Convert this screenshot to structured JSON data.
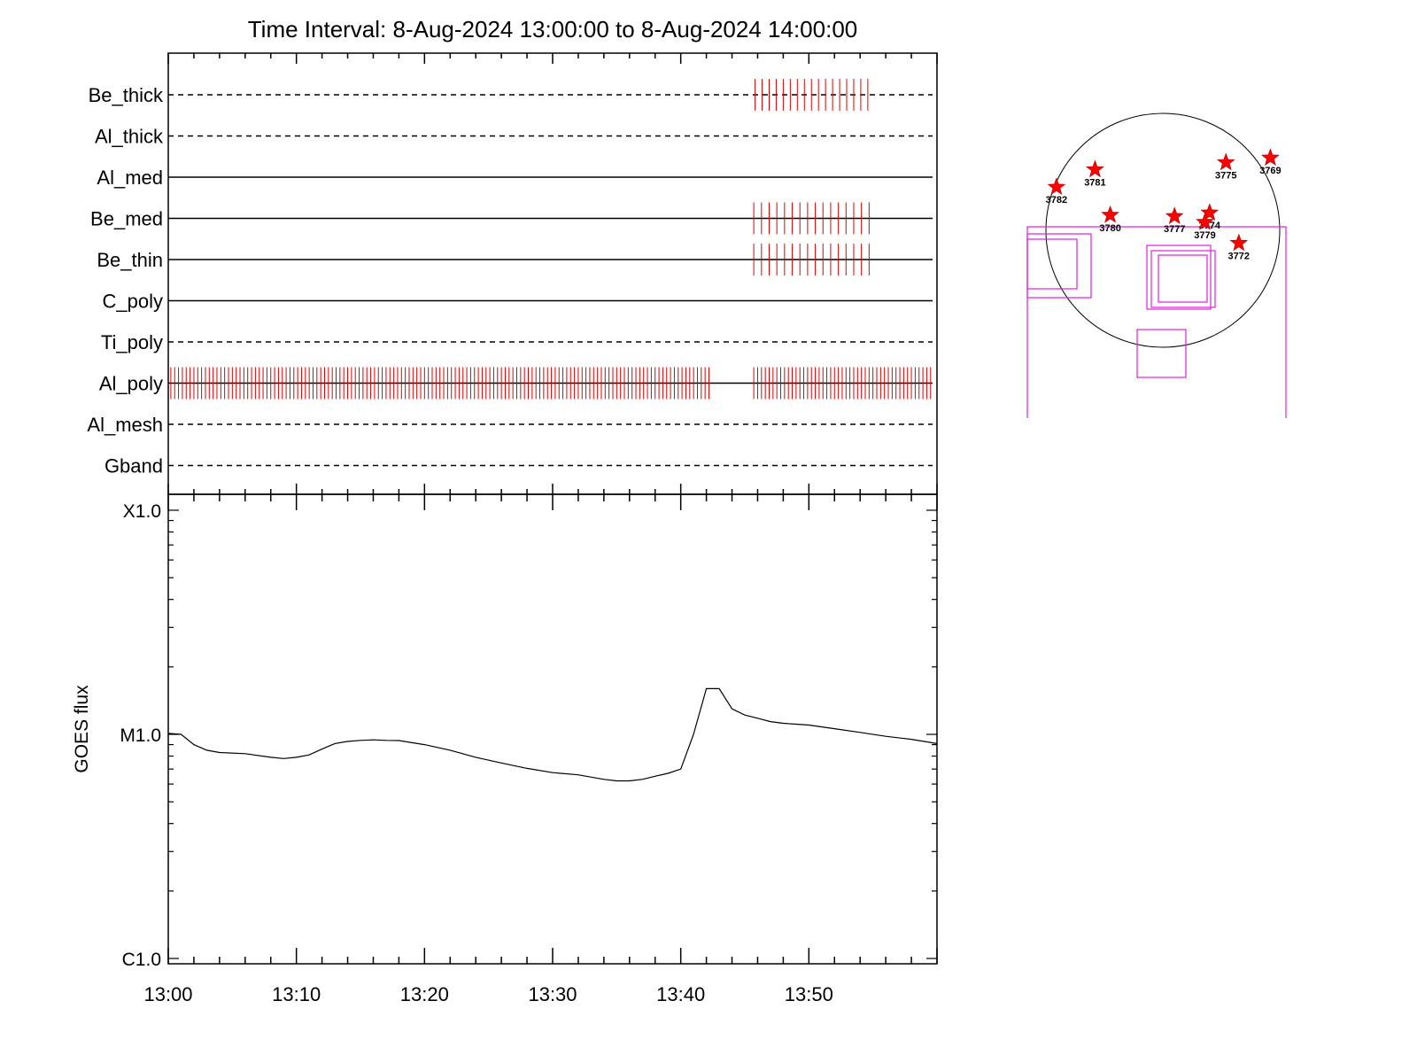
{
  "chart_data": [
    {
      "type": "timeline",
      "title": "Time Interval:  8-Aug-2024 13:00:00 to  8-Aug-2024 14:00:00",
      "time_range": [
        "13:00",
        "14:00"
      ],
      "filters": [
        {
          "name": "Be_thick",
          "style": "dashed",
          "ticks": [
            {
              "from": 45.8,
              "to": 55.0,
              "step": 0.55
            }
          ]
        },
        {
          "name": "Al_thick",
          "style": "dashed",
          "ticks": []
        },
        {
          "name": "Al_med",
          "style": "solid",
          "ticks": []
        },
        {
          "name": "Be_med",
          "style": "solid",
          "ticks": [
            {
              "from": 45.7,
              "to": 55.0,
              "step": 0.6
            }
          ]
        },
        {
          "name": "Be_thin",
          "style": "solid",
          "ticks": [
            {
              "from": 45.7,
              "to": 55.0,
              "step": 0.6
            }
          ]
        },
        {
          "name": "C_poly",
          "style": "solid",
          "ticks": []
        },
        {
          "name": "Ti_poly",
          "style": "dashed",
          "ticks": []
        },
        {
          "name": "Al_poly",
          "style": "solid",
          "ticks": [
            {
              "from": 0.2,
              "to": 42.4,
              "step": 0.3
            },
            {
              "from": 45.7,
              "to": 59.7,
              "step": 0.3
            }
          ]
        },
        {
          "name": "Al_mesh",
          "style": "dashed",
          "ticks": []
        },
        {
          "name": "Gband",
          "style": "dashed",
          "ticks": []
        }
      ]
    },
    {
      "type": "line",
      "ylabel": "GOES flux",
      "yscale": "log",
      "yticks": [
        {
          "label": "X1.0",
          "value": 0.0001
        },
        {
          "label": "M1.0",
          "value": 1e-05
        },
        {
          "label": "C1.0",
          "value": 1e-06
        }
      ],
      "xticks": [
        "13:00",
        "13:10",
        "13:20",
        "13:30",
        "13:40",
        "13:50"
      ],
      "series": [
        {
          "x": [
            "13:00",
            "13:01",
            "13:02",
            "13:03",
            "13:04",
            "13:06",
            "13:08",
            "13:09",
            "13:10",
            "13:11",
            "13:12",
            "13:13",
            "13:14",
            "13:15",
            "13:16",
            "13:17",
            "13:18",
            "13:20",
            "13:22",
            "13:24",
            "13:26",
            "13:28",
            "13:30",
            "13:32",
            "13:34",
            "13:35",
            "13:36",
            "13:37",
            "13:38",
            "13:39",
            "13:40",
            "13:41",
            "13:42",
            "13:43",
            "13:44",
            "13:45",
            "13:46",
            "13:47",
            "13:48",
            "13:49",
            "13:50",
            "13:52",
            "13:54",
            "13:56",
            "13:58",
            "13:59",
            "14:00"
          ],
          "y": [
            1.01e-05,
            1e-05,
            9e-06,
            8.5e-06,
            8.3e-06,
            8.2e-06,
            7.9e-06,
            7.8e-06,
            7.9e-06,
            8.1e-06,
            8.6e-06,
            9.1e-06,
            9.3e-06,
            9.4e-06,
            9.45e-06,
            9.4e-06,
            9.38e-06,
            9e-06,
            8.5e-06,
            7.9e-06,
            7.45e-06,
            7.05e-06,
            6.75e-06,
            6.6e-06,
            6.3e-06,
            6.2e-06,
            6.2e-06,
            6.3e-06,
            6.5e-06,
            6.7e-06,
            7e-06,
            1e-05,
            1.6e-05,
            1.6e-05,
            1.3e-05,
            1.22e-05,
            1.18e-05,
            1.14e-05,
            1.12e-05,
            1.11e-05,
            1.1e-05,
            1.06e-05,
            1.02e-05,
            9.8e-06,
            9.5e-06,
            9.3e-06,
            9.1e-06
          ]
        }
      ]
    },
    {
      "type": "scatter",
      "points": [
        {
          "label": "3769",
          "x": 0.92,
          "y": 0.62
        },
        {
          "label": "3775",
          "x": 0.54,
          "y": 0.58
        },
        {
          "label": "3781",
          "x": -0.58,
          "y": 0.52
        },
        {
          "label": "3782",
          "x": -0.91,
          "y": 0.37
        },
        {
          "label": "3780",
          "x": -0.45,
          "y": 0.13
        },
        {
          "label": "3777",
          "x": 0.1,
          "y": 0.12
        },
        {
          "label": "3774",
          "x": 0.4,
          "y": 0.15
        },
        {
          "label": "3779",
          "x": 0.36,
          "y": 0.07
        },
        {
          "label": "3772",
          "x": 0.65,
          "y": -0.11
        }
      ]
    }
  ]
}
